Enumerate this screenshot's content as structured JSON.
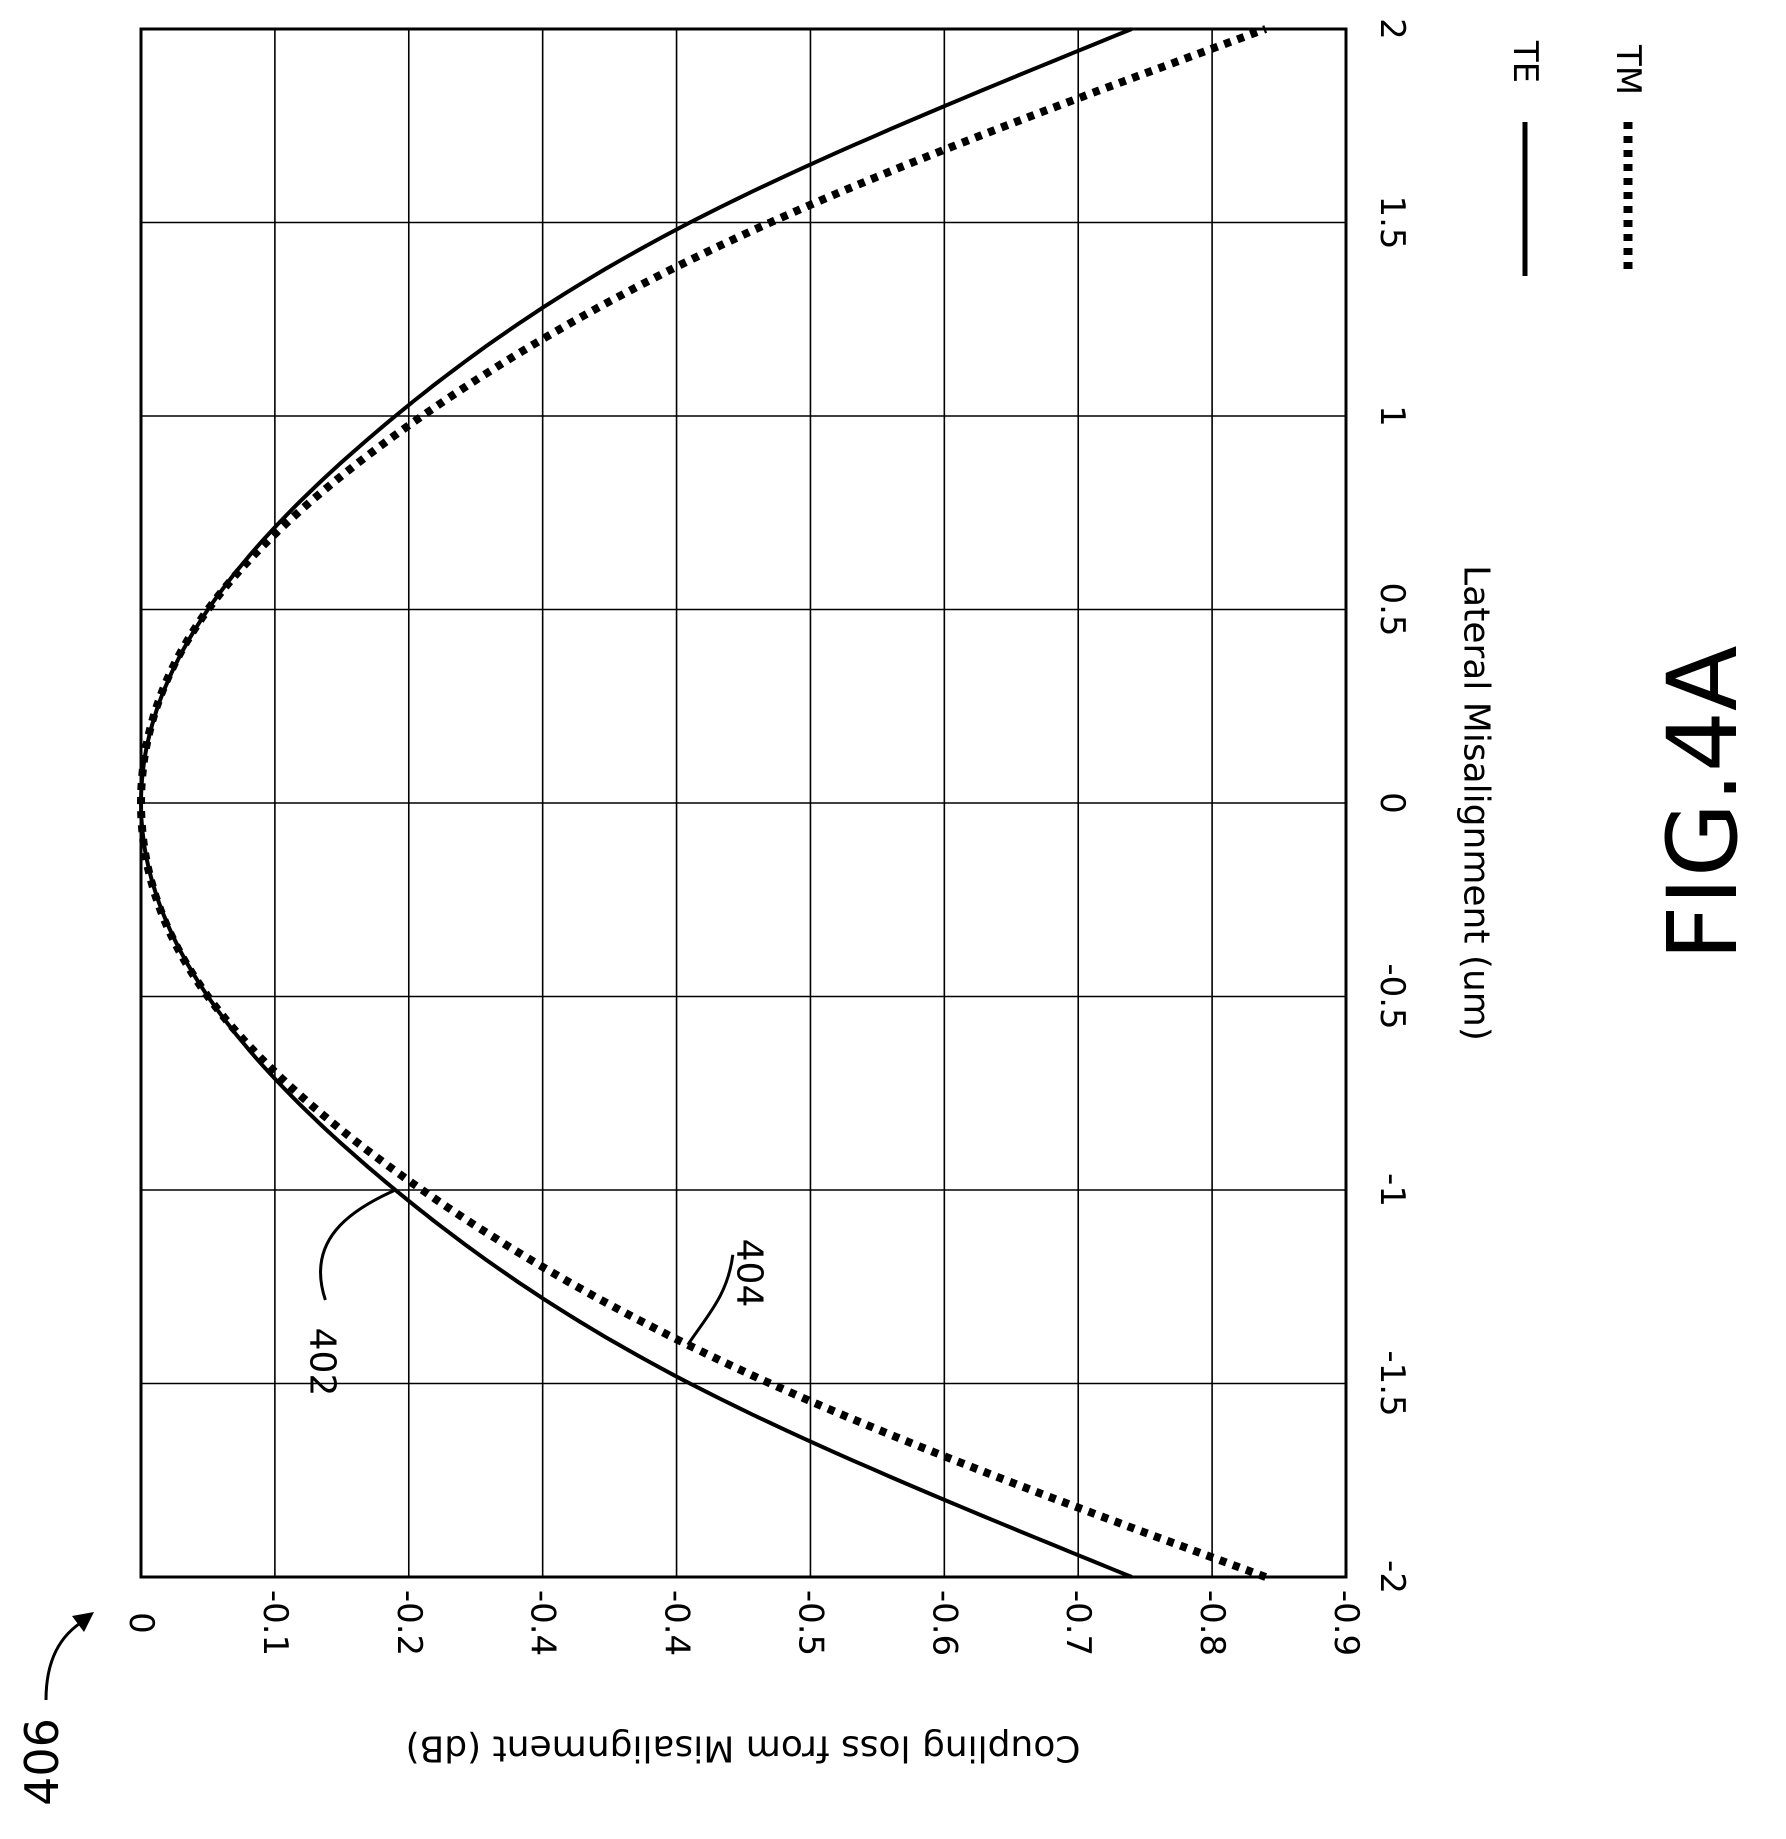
{
  "figure": {
    "title": "FIG.4A",
    "reference_numeral": "406"
  },
  "chart_data": {
    "type": "line",
    "xlabel": "Lateral Misalignment (um)",
    "ylabel": "Coupling loss from Misalignment (dB)",
    "xlim": [
      -2,
      2
    ],
    "ylim": [
      -0.9,
      0
    ],
    "xticks": [
      "-2",
      "-1.5",
      "-1",
      "-0.5",
      "0",
      "0.5",
      "1",
      "1.5",
      "2"
    ],
    "yticks": [
      "0",
      "-0.1",
      "-0.2",
      "-0.4",
      "-0.4",
      "-0.5",
      "-0.6",
      "-0.7",
      "-0.8",
      "-0.9"
    ],
    "grid": true,
    "legend_position": "right",
    "series": [
      {
        "name": "TE",
        "style": "solid",
        "callout": "402",
        "x": [
          -2,
          -1.5,
          -1,
          -0.5,
          0,
          0.5,
          1,
          1.5,
          2
        ],
        "y": [
          -0.74,
          -0.41,
          -0.19,
          -0.05,
          0,
          -0.05,
          -0.19,
          -0.41,
          -0.74
        ]
      },
      {
        "name": "TM",
        "style": "dotted",
        "callout": "404",
        "x": [
          -2,
          -1.5,
          -1,
          -0.5,
          0,
          0.5,
          1,
          1.5,
          2
        ],
        "y": [
          -0.84,
          -0.47,
          -0.21,
          -0.05,
          0,
          -0.05,
          -0.21,
          -0.47,
          -0.84
        ]
      }
    ]
  }
}
